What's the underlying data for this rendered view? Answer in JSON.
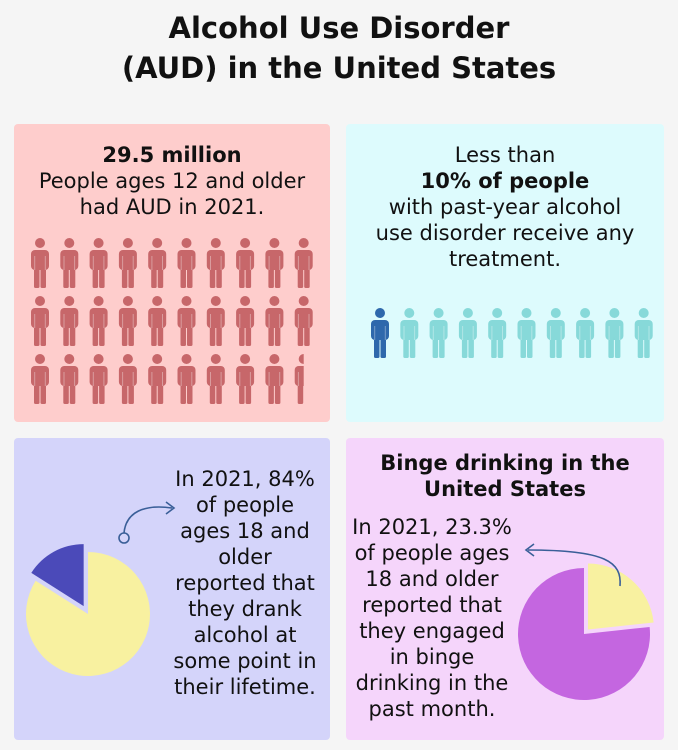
{
  "title": {
    "line1": "Alcohol Use Disorder",
    "line2": "(AUD) in the United States"
  },
  "colors": {
    "background": "#f5f5f5",
    "card_aud": "#fecdcc",
    "card_treatment": "#ddfbfd",
    "card_lifetime": "#d4d4fa",
    "card_binge": "#f5d5fb",
    "person_red": "#c7676a",
    "person_teal": "#87d9d9",
    "person_blue": "#2e68ac",
    "pie_yellow": "#f8f1a0",
    "pie_indigo": "#4b4ab9",
    "pie_purple": "#c466e0",
    "arrow": "#3a5f98"
  },
  "aud": {
    "headline": "29.5 million",
    "line1": "People ages 12 and older",
    "line2": "had AUD in 2021.",
    "icon": "person-icon",
    "rows": 3,
    "columns": 10,
    "icons_shown_fraction": 29.5
  },
  "treatment": {
    "line1": "Less than",
    "headline": "10% of people",
    "line2": "with past-year alcohol",
    "line3": "use disorder receive any",
    "line4": "treatment.",
    "icon": "person-icon",
    "icons_total": 10,
    "icons_highlighted": 1
  },
  "lifetime": {
    "lines": [
      "In 2021, 84%",
      "of people",
      "ages 18 and",
      "older",
      "reported that",
      "they drank",
      "alcohol at",
      "some point in",
      "their lifetime."
    ],
    "pie_percent": 84,
    "icon": "pie-chart-icon"
  },
  "binge": {
    "heading_line1": "Binge drinking in the",
    "heading_line2": "United States",
    "lines": [
      "In 2021, 23.3%",
      "of people ages",
      "18 and older",
      "reported that",
      "they engaged",
      "in binge",
      "drinking in the",
      "past month."
    ],
    "pie_percent": 23.3,
    "icon": "pie-chart-icon"
  }
}
